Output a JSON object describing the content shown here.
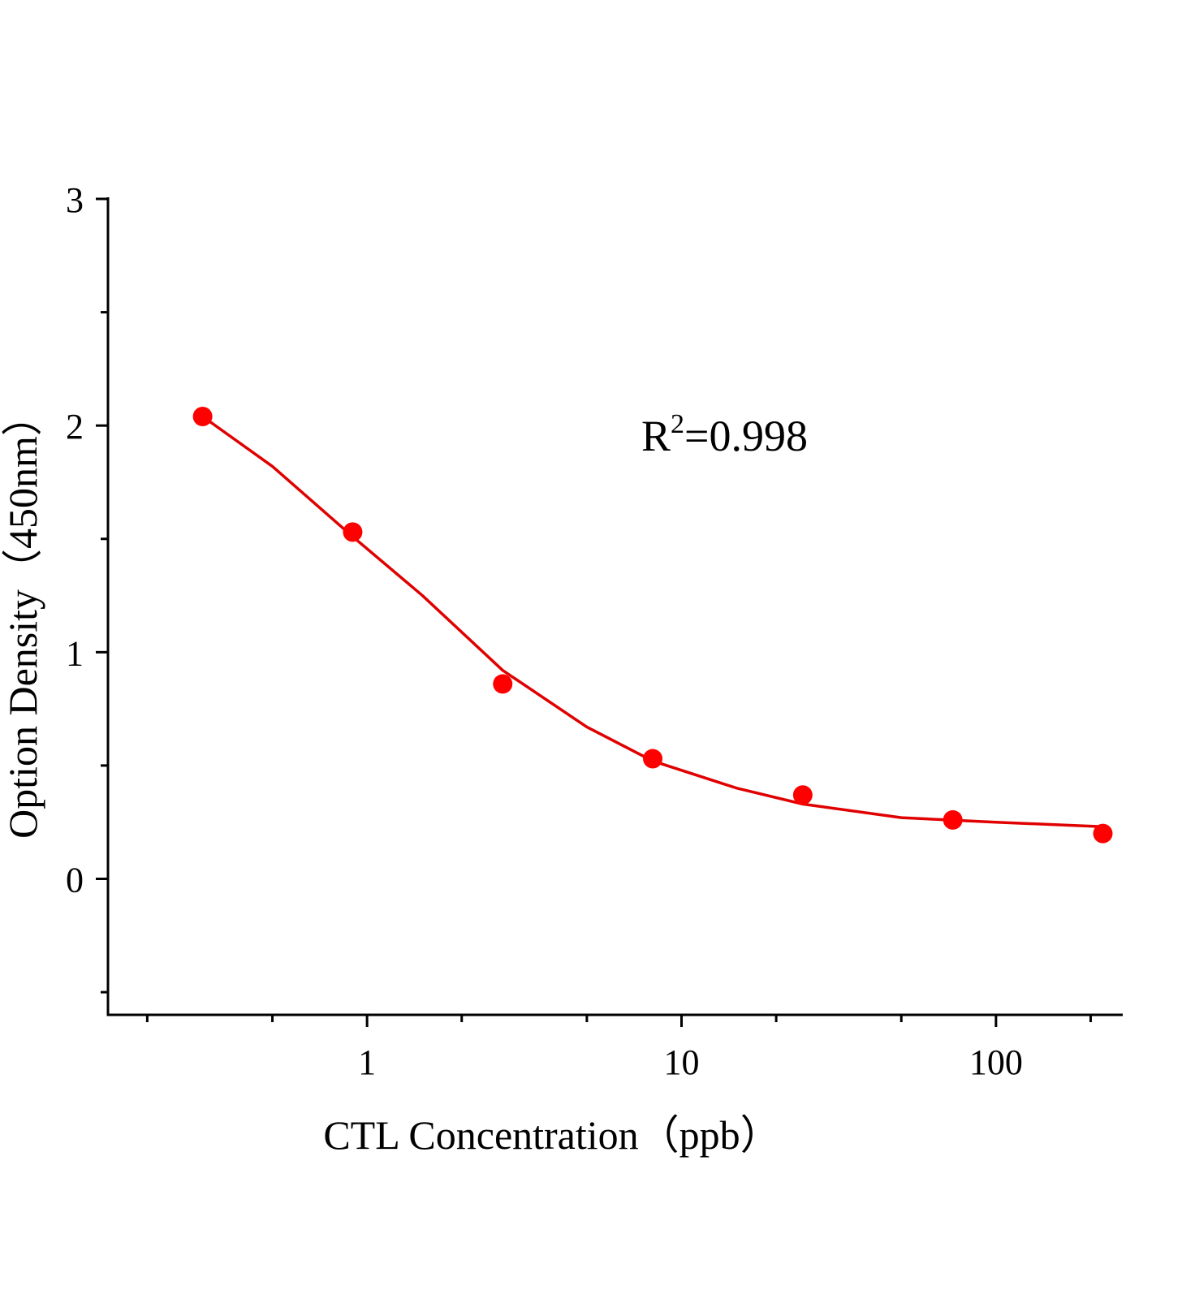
{
  "chart_data": {
    "type": "scatter",
    "xlabel": "CTL  Concentration（ppb）",
    "ylabel": "Option Density（450nm）",
    "annotation": {
      "base": "R",
      "superscript": "2",
      "text": "=0.998"
    },
    "xscale": "log",
    "xlim": [
      0.15,
      253
    ],
    "xticks": [
      1,
      10,
      100
    ],
    "xminorticks": [
      0.2,
      0.5,
      2,
      5,
      20,
      50,
      200
    ],
    "ylim": [
      -0.6,
      3
    ],
    "yticks": [
      0,
      1,
      2,
      3
    ],
    "yminorticks": [
      -0.5,
      0.5,
      1.5,
      2.5
    ],
    "grid": false,
    "series": [
      {
        "style": "markers",
        "color": "#ff0000",
        "x": [
          0.3,
          0.9,
          2.7,
          8.1,
          24.3,
          72.9,
          218.7
        ],
        "values": [
          2.04,
          1.53,
          0.86,
          0.53,
          0.37,
          0.26,
          0.2
        ]
      },
      {
        "style": "line",
        "color": "#e00000",
        "x": [
          0.3,
          0.5,
          0.9,
          1.5,
          2.7,
          5,
          8.1,
          15,
          24.3,
          50,
          100,
          218.7
        ],
        "values": [
          2.04,
          1.82,
          1.51,
          1.25,
          0.92,
          0.67,
          0.52,
          0.4,
          0.33,
          0.27,
          0.25,
          0.23
        ]
      }
    ]
  }
}
